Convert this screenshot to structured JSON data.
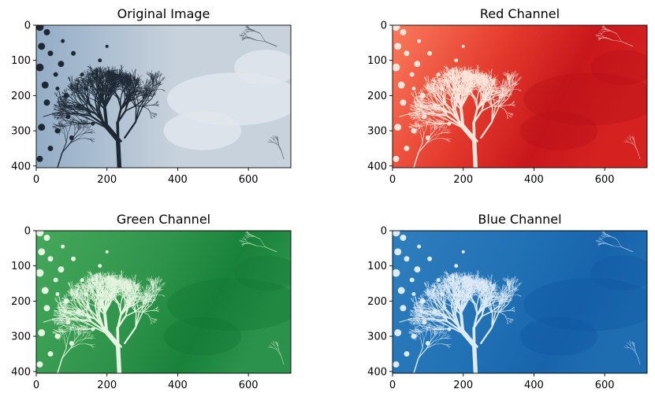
{
  "chart_data": [
    {
      "type": "heatmap",
      "title": "Original Image",
      "colormap": "rgb",
      "xlim": [
        0,
        720
      ],
      "ylim": [
        405,
        0
      ],
      "xticks": [
        0,
        200,
        400,
        600
      ],
      "yticks": [
        0,
        100,
        200,
        300,
        400
      ],
      "xlabel": "",
      "ylabel": ""
    },
    {
      "type": "heatmap",
      "title": "Red Channel",
      "colormap": "Reds",
      "xlim": [
        0,
        720
      ],
      "ylim": [
        405,
        0
      ],
      "xticks": [
        0,
        200,
        400,
        600
      ],
      "yticks": [
        0,
        100,
        200,
        300,
        400
      ],
      "xlabel": "",
      "ylabel": ""
    },
    {
      "type": "heatmap",
      "title": "Green Channel",
      "colormap": "Greens",
      "xlim": [
        0,
        720
      ],
      "ylim": [
        405,
        0
      ],
      "xticks": [
        0,
        200,
        400,
        600
      ],
      "yticks": [
        0,
        100,
        200,
        300,
        400
      ],
      "xlabel": "",
      "ylabel": ""
    },
    {
      "type": "heatmap",
      "title": "Blue Channel",
      "colormap": "Blues",
      "xlim": [
        0,
        720
      ],
      "ylim": [
        405,
        0
      ],
      "xticks": [
        0,
        200,
        400,
        600
      ],
      "yticks": [
        0,
        100,
        200,
        300,
        400
      ],
      "xlabel": "",
      "ylabel": ""
    }
  ],
  "colors": {
    "original": {
      "sky_left": "#93adc6",
      "sky_right": "#c8d2dc",
      "cloud": "#e1e6ec",
      "tree": "#1e2833"
    },
    "red": {
      "light": "#fb7b5c",
      "dark": "#c8171c",
      "tree": "#fde7dc"
    },
    "green": {
      "light": "#45a85b",
      "dark": "#18823a",
      "tree": "#e5f5e0"
    },
    "blue": {
      "light": "#2f7ebc",
      "dark": "#1764ab",
      "tree": "#deebf7"
    }
  }
}
